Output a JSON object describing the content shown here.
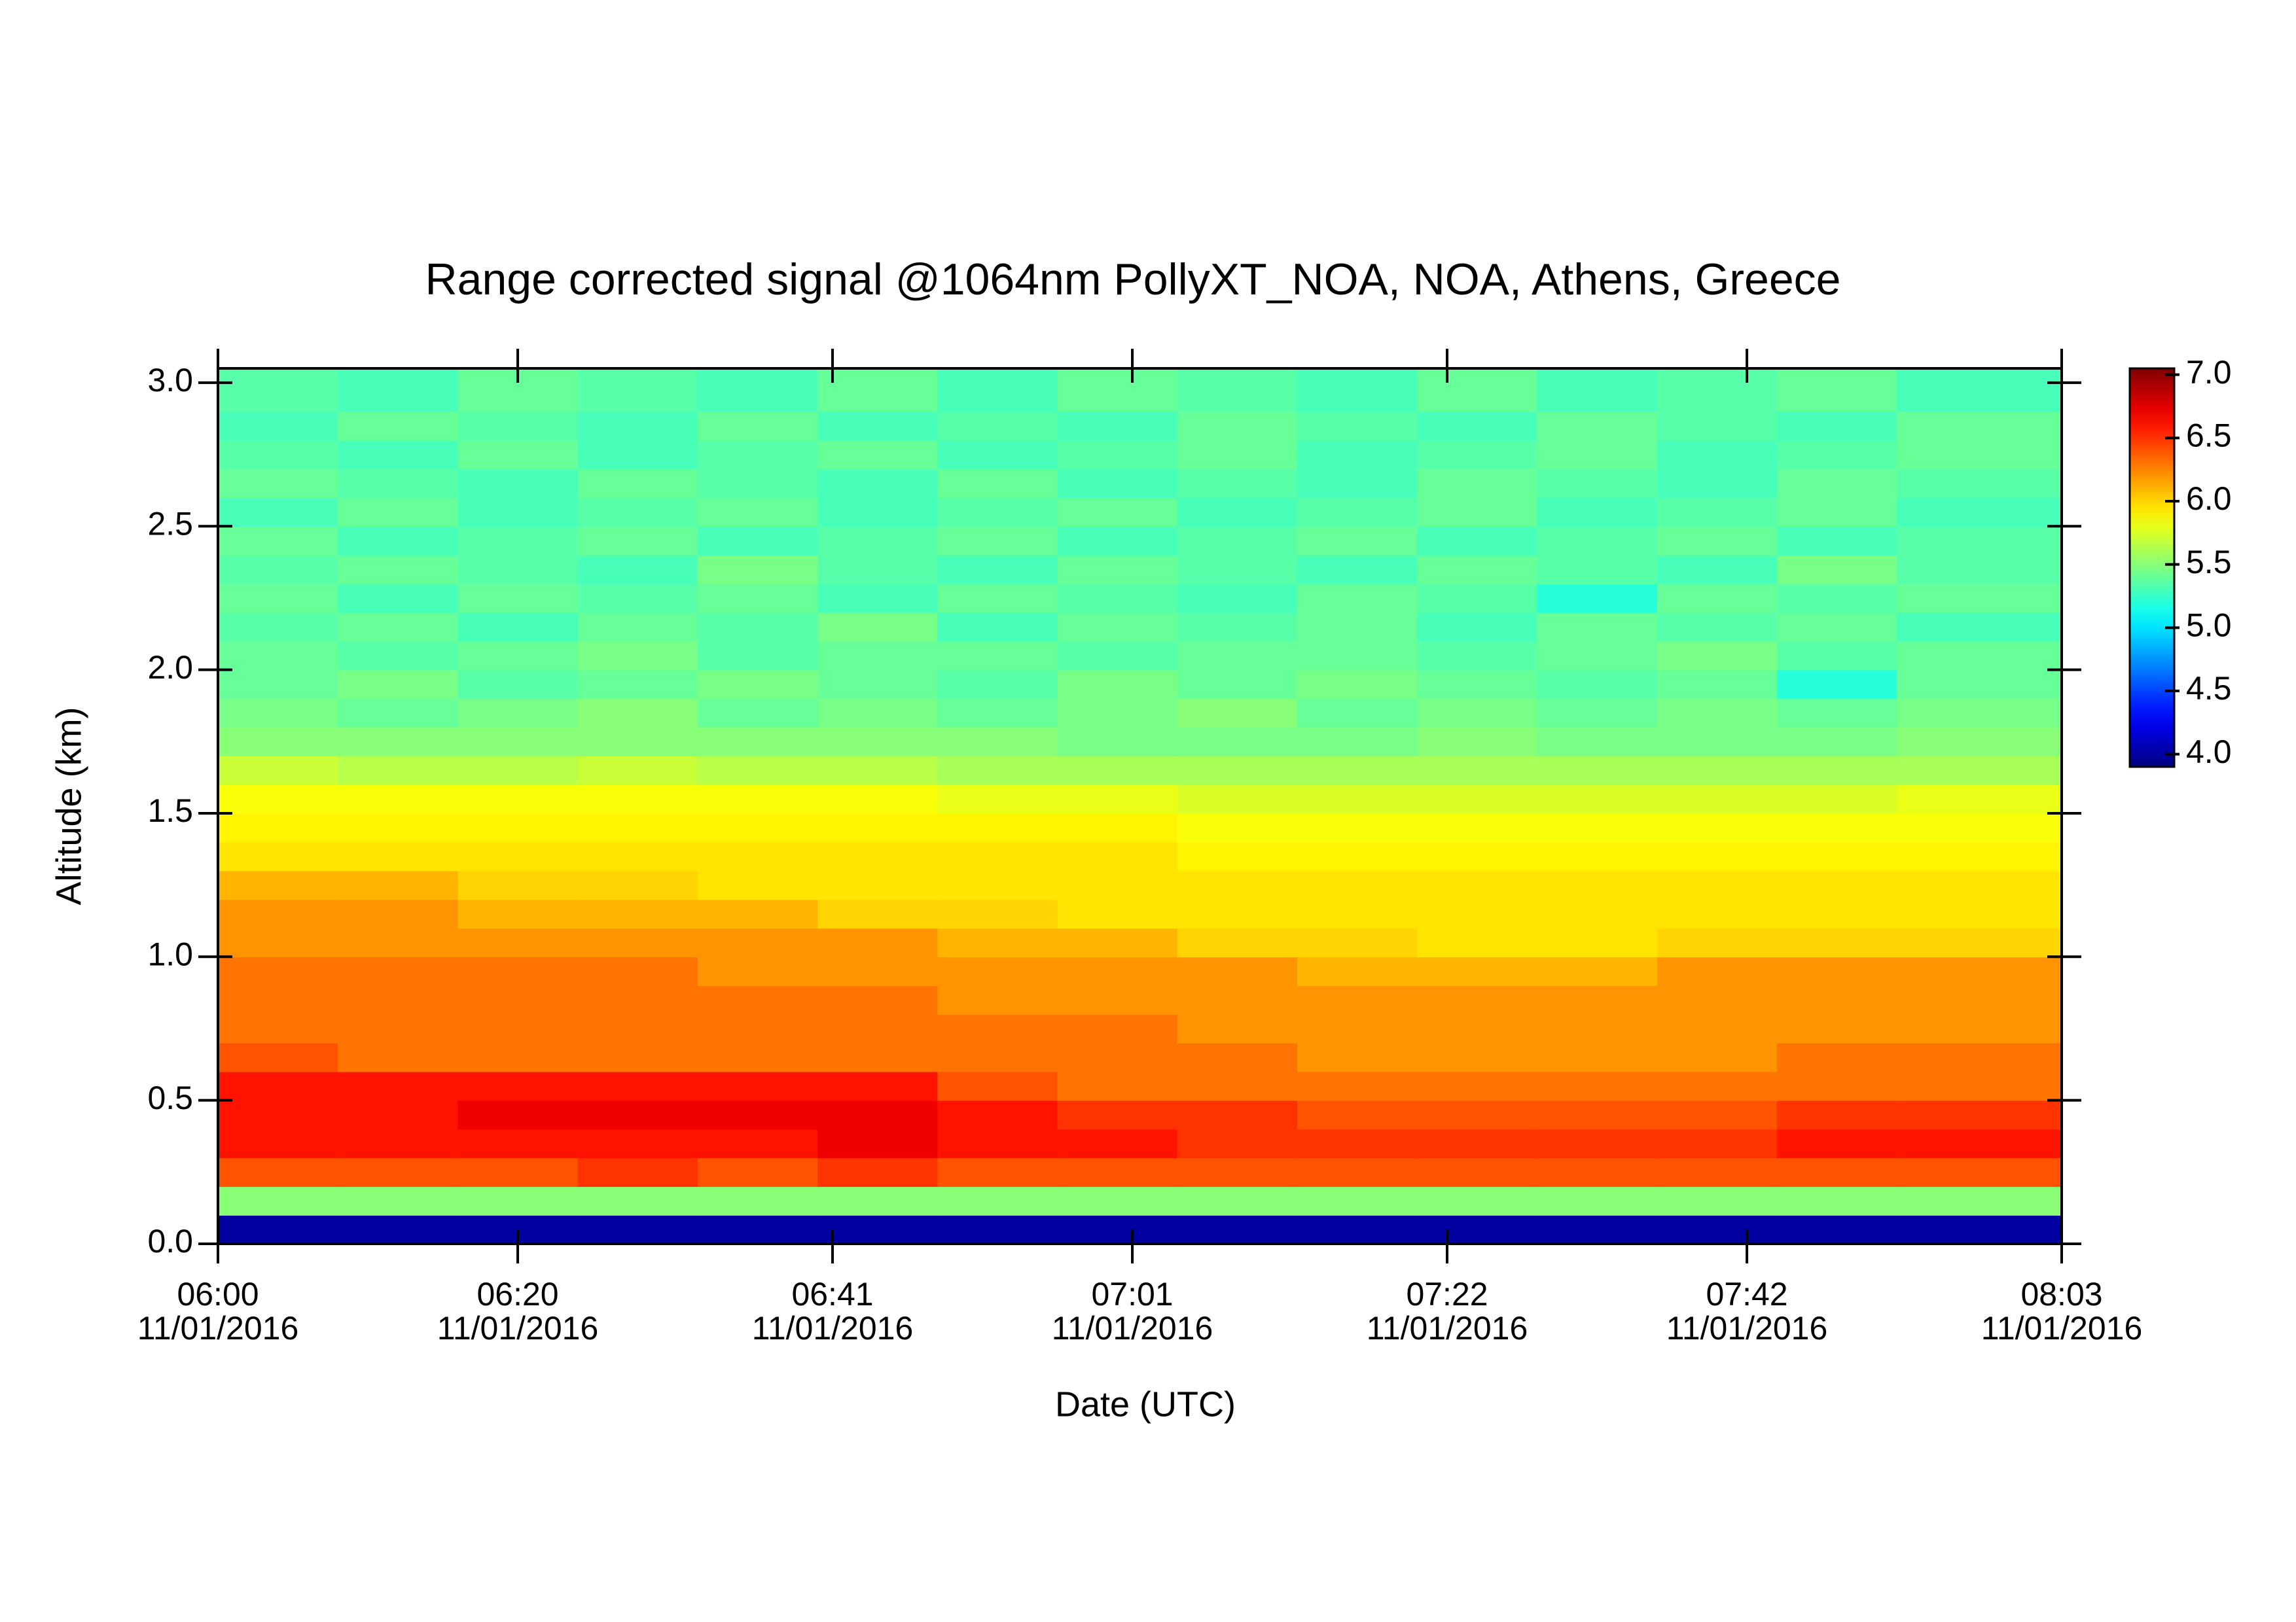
{
  "chart_data": {
    "type": "heatmap",
    "title": "Range corrected signal @1064nm  PollyXT_NOA, NOA, Athens, Greece",
    "x_label": "Date (UTC)",
    "y_label": "Altitude (km)",
    "xlim": [
      "06:00",
      "08:03"
    ],
    "xticks": [
      {
        "value": "06:00",
        "label": "06:00",
        "date": "11/01/2016"
      },
      {
        "value": "06:20",
        "label": "06:20",
        "date": "11/01/2016"
      },
      {
        "value": "06:41",
        "label": "06:41",
        "date": "11/01/2016"
      },
      {
        "value": "07:01",
        "label": "07:01",
        "date": "11/01/2016"
      },
      {
        "value": "07:22",
        "label": "07:22",
        "date": "11/01/2016"
      },
      {
        "value": "07:42",
        "label": "07:42",
        "date": "11/01/2016"
      },
      {
        "value": "08:03",
        "label": "08:03",
        "date": "11/01/2016"
      }
    ],
    "ylim": [
      0,
      3.05
    ],
    "yticks": [
      {
        "value": 0,
        "label": "0.0"
      },
      0.5,
      {
        "value": 1,
        "label": "1.0"
      },
      1.5,
      {
        "value": 2,
        "label": "2.0"
      },
      2.5,
      {
        "value": 3,
        "label": "3.0"
      }
    ],
    "colormap": "jet",
    "clim": [
      3.9,
      7.05
    ],
    "cticks": [
      {
        "value": 4,
        "label": "4.0"
      },
      4.5,
      {
        "value": 5,
        "label": "5.0"
      },
      5.5,
      {
        "value": 6,
        "label": "6.0"
      },
      6.5,
      {
        "value": 7,
        "label": "7.0"
      }
    ],
    "x": [
      "06:00",
      "06:08",
      "06:16",
      "06:24",
      "06:32",
      "06:40",
      "06:48",
      "06:56",
      "07:04",
      "07:12",
      "07:20",
      "07:28",
      "07:36",
      "07:44",
      "07:52"
    ],
    "y": [
      0,
      0.1,
      0.2,
      0.3,
      0.4,
      0.5,
      0.6,
      0.7,
      0.8,
      0.9,
      1,
      1.1,
      1.2,
      1.3,
      1.4,
      1.5,
      1.6,
      1.7,
      1.8,
      1.9,
      2,
      2.1,
      2.2,
      2.3,
      2.4,
      2.5,
      2.6,
      2.7,
      2.8,
      2.9
    ],
    "z": [
      [
        4,
        4,
        4,
        4,
        4,
        4,
        4,
        4,
        4,
        4,
        4,
        4,
        4,
        4,
        4
      ],
      [
        5.5,
        5.5,
        5.5,
        5.5,
        5.5,
        5.5,
        5.5,
        5.5,
        5.5,
        5.5,
        5.5,
        5.5,
        5.5,
        5.5,
        5.5
      ],
      [
        6.4,
        6.4,
        6.4,
        6.5,
        6.4,
        6.5,
        6.4,
        6.4,
        6.4,
        6.4,
        6.4,
        6.4,
        6.4,
        6.4,
        6.4
      ],
      [
        6.6,
        6.6,
        6.6,
        6.6,
        6.6,
        6.7,
        6.6,
        6.6,
        6.5,
        6.5,
        6.5,
        6.5,
        6.5,
        6.6,
        6.6
      ],
      [
        6.6,
        6.6,
        6.7,
        6.7,
        6.7,
        6.7,
        6.6,
        6.5,
        6.5,
        6.4,
        6.4,
        6.4,
        6.4,
        6.5,
        6.5
      ],
      [
        6.6,
        6.6,
        6.6,
        6.6,
        6.6,
        6.6,
        6.4,
        6.3,
        6.3,
        6.3,
        6.3,
        6.3,
        6.3,
        6.3,
        6.3
      ],
      [
        6.4,
        6.3,
        6.3,
        6.3,
        6.3,
        6.3,
        6.3,
        6.3,
        6.3,
        6.2,
        6.2,
        6.2,
        6.2,
        6.3,
        6.3
      ],
      [
        6.3,
        6.3,
        6.3,
        6.3,
        6.3,
        6.3,
        6.3,
        6.3,
        6.2,
        6.2,
        6.2,
        6.2,
        6.2,
        6.2,
        6.2
      ],
      [
        6.3,
        6.3,
        6.3,
        6.3,
        6.3,
        6.3,
        6.2,
        6.2,
        6.2,
        6.2,
        6.2,
        6.2,
        6.2,
        6.2,
        6.2
      ],
      [
        6.3,
        6.3,
        6.3,
        6.3,
        6.2,
        6.2,
        6.2,
        6.2,
        6.2,
        6.1,
        6.1,
        6.1,
        6.2,
        6.2,
        6.2
      ],
      [
        6.2,
        6.2,
        6.2,
        6.2,
        6.2,
        6.2,
        6.1,
        6.1,
        6,
        6,
        5.95,
        5.95,
        6,
        6,
        6
      ],
      [
        6.2,
        6.2,
        6.1,
        6.1,
        6.1,
        6,
        6,
        5.95,
        5.95,
        5.95,
        5.95,
        5.95,
        5.95,
        5.95,
        5.95
      ],
      [
        6.1,
        6.1,
        6,
        6,
        5.95,
        5.95,
        5.95,
        5.95,
        5.95,
        5.95,
        5.95,
        5.95,
        5.95,
        5.95,
        5.95
      ],
      [
        5.95,
        5.95,
        5.95,
        5.95,
        5.95,
        5.95,
        5.95,
        5.95,
        5.9,
        5.9,
        5.9,
        5.9,
        5.9,
        5.9,
        5.9
      ],
      [
        5.9,
        5.9,
        5.9,
        5.9,
        5.9,
        5.9,
        5.9,
        5.9,
        5.85,
        5.85,
        5.85,
        5.85,
        5.85,
        5.85,
        5.85
      ],
      [
        5.85,
        5.85,
        5.85,
        5.85,
        5.85,
        5.85,
        5.8,
        5.8,
        5.75,
        5.75,
        5.75,
        5.75,
        5.75,
        5.75,
        5.8
      ],
      [
        5.7,
        5.65,
        5.65,
        5.7,
        5.65,
        5.65,
        5.6,
        5.6,
        5.6,
        5.6,
        5.6,
        5.6,
        5.6,
        5.6,
        5.6
      ],
      [
        5.5,
        5.5,
        5.5,
        5.5,
        5.5,
        5.5,
        5.5,
        5.45,
        5.45,
        5.45,
        5.5,
        5.45,
        5.45,
        5.45,
        5.5
      ],
      [
        5.45,
        5.4,
        5.45,
        5.5,
        5.4,
        5.45,
        5.4,
        5.45,
        5.5,
        5.4,
        5.45,
        5.4,
        5.45,
        5.4,
        5.45
      ],
      [
        5.4,
        5.45,
        5.35,
        5.4,
        5.45,
        5.4,
        5.35,
        5.45,
        5.4,
        5.45,
        5.4,
        5.35,
        5.4,
        5.2,
        5.4
      ],
      [
        5.4,
        5.35,
        5.4,
        5.45,
        5.35,
        5.4,
        5.4,
        5.35,
        5.4,
        5.4,
        5.35,
        5.4,
        5.45,
        5.35,
        5.4
      ],
      [
        5.35,
        5.4,
        5.3,
        5.4,
        5.35,
        5.45,
        5.3,
        5.4,
        5.35,
        5.4,
        5.3,
        5.4,
        5.35,
        5.4,
        5.3
      ],
      [
        5.4,
        5.3,
        5.4,
        5.35,
        5.4,
        5.3,
        5.4,
        5.35,
        5.3,
        5.4,
        5.35,
        5.2,
        5.4,
        5.35,
        5.4
      ],
      [
        5.35,
        5.4,
        5.35,
        5.3,
        5.45,
        5.35,
        5.3,
        5.4,
        5.35,
        5.3,
        5.4,
        5.35,
        5.3,
        5.45,
        5.35
      ],
      [
        5.4,
        5.3,
        5.35,
        5.4,
        5.3,
        5.35,
        5.4,
        5.3,
        5.35,
        5.4,
        5.3,
        5.35,
        5.4,
        5.3,
        5.35
      ],
      [
        5.3,
        5.4,
        5.3,
        5.35,
        5.4,
        5.3,
        5.35,
        5.4,
        5.3,
        5.35,
        5.4,
        5.3,
        5.35,
        5.4,
        5.3
      ],
      [
        5.4,
        5.35,
        5.3,
        5.4,
        5.35,
        5.3,
        5.4,
        5.3,
        5.35,
        5.3,
        5.4,
        5.35,
        5.3,
        5.4,
        5.35
      ],
      [
        5.35,
        5.3,
        5.4,
        5.3,
        5.35,
        5.4,
        5.3,
        5.35,
        5.4,
        5.3,
        5.35,
        5.4,
        5.3,
        5.35,
        5.4
      ],
      [
        5.3,
        5.4,
        5.35,
        5.3,
        5.4,
        5.3,
        5.35,
        5.3,
        5.4,
        5.35,
        5.3,
        5.4,
        5.35,
        5.3,
        5.4
      ],
      [
        5.35,
        5.3,
        5.4,
        5.35,
        5.3,
        5.4,
        5.3,
        5.4,
        5.35,
        5.3,
        5.4,
        5.3,
        5.35,
        5.4,
        5.3
      ]
    ]
  }
}
